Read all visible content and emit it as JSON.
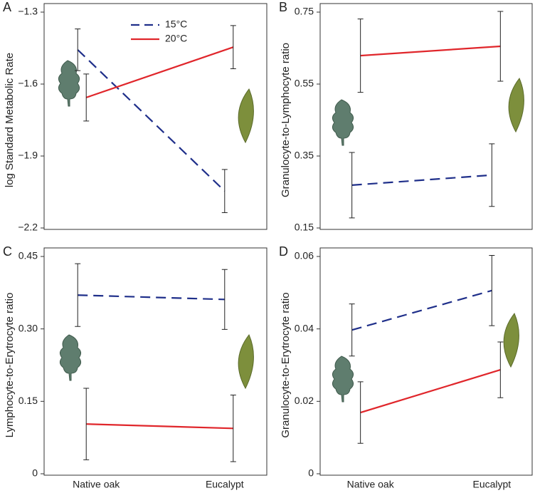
{
  "chart_data": [
    {
      "type": "line",
      "panel_label": "A",
      "ylabel": "log Standard Metabolic Rate",
      "legend": "top",
      "ylim": [
        -2.2,
        -1.3
      ],
      "yticks": [
        {
          "value": -2.2,
          "label": "−2.2"
        },
        {
          "value": -1.9,
          "label": "−1.9"
        },
        {
          "value": -1.6,
          "label": "−1.6"
        },
        {
          "value": -1.3,
          "label": "−1.3"
        }
      ],
      "series": [
        {
          "name": "15°C",
          "color": "#1f2f8a",
          "dashed": true,
          "values": [
            -1.457,
            -2.046
          ],
          "errors": [
            0.087,
            0.09
          ]
        },
        {
          "name": "20°C",
          "color": "#e0262b",
          "dashed": false,
          "values": [
            -1.656,
            -1.446
          ],
          "errors": [
            0.098,
            0.09
          ]
        }
      ]
    },
    {
      "type": "line",
      "panel_label": "B",
      "ylabel": "Granulocyte-to-Lymphocyte ratio",
      "ylim": [
        0.15,
        0.75
      ],
      "yticks": [
        0.15,
        0.35,
        0.55,
        0.75
      ],
      "series": [
        {
          "color": "#1f2f8a",
          "dashed": true,
          "values": [
            0.269,
            0.297
          ],
          "errors": [
            0.091,
            0.087
          ]
        },
        {
          "color": "#e0262b",
          "dashed": false,
          "values": [
            0.629,
            0.655
          ],
          "errors": [
            0.102,
            0.097
          ]
        }
      ]
    },
    {
      "type": "line",
      "panel_label": "C",
      "ylabel": "Lymphocyte-to-Erytrocyte ratio",
      "categories": [
        "Native oak",
        "Eucalypt"
      ],
      "ylim": [
        0,
        0.45
      ],
      "yticks": [
        0,
        0.15,
        {
          "value": 0.3,
          "label": "0.30"
        },
        0.45
      ],
      "series": [
        {
          "color": "#1f2f8a",
          "dashed": true,
          "values": [
            0.37,
            0.361
          ],
          "errors": [
            0.065,
            0.062
          ]
        },
        {
          "color": "#e0262b",
          "dashed": false,
          "values": [
            0.103,
            0.094
          ],
          "errors": [
            0.074,
            0.069
          ]
        }
      ]
    },
    {
      "type": "line",
      "panel_label": "D",
      "ylabel": "Granulocyte-to-Erytrocyte ratio",
      "categories": [
        "Native oak",
        "Eucalypt"
      ],
      "ylim": [
        0,
        0.06
      ],
      "yticks": [
        0,
        0.02,
        0.04,
        0.06
      ],
      "series": [
        {
          "color": "#1f2f8a",
          "dashed": true,
          "values": [
            0.0397,
            0.0506
          ],
          "errors": [
            0.0072,
            0.0097
          ]
        },
        {
          "color": "#e0262b",
          "dashed": false,
          "values": [
            0.0169,
            0.0287
          ],
          "errors": [
            0.0085,
            0.0077
          ]
        }
      ]
    }
  ]
}
